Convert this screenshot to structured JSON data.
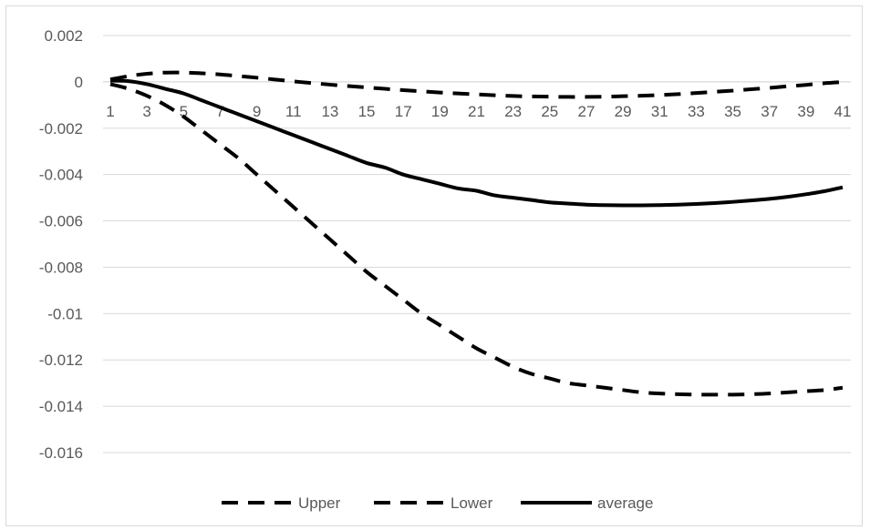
{
  "chart_data": {
    "type": "line",
    "title": "",
    "xlabel": "",
    "ylabel": "",
    "x": [
      1,
      2,
      3,
      4,
      5,
      6,
      7,
      8,
      9,
      10,
      11,
      12,
      13,
      14,
      15,
      16,
      17,
      18,
      19,
      20,
      21,
      22,
      23,
      24,
      25,
      26,
      27,
      28,
      29,
      30,
      31,
      32,
      33,
      34,
      35,
      36,
      37,
      38,
      39,
      40,
      41
    ],
    "x_tick_labels": [
      "1",
      "3",
      "5",
      "7",
      "9",
      "11",
      "13",
      "15",
      "17",
      "19",
      "21",
      "23",
      "25",
      "27",
      "29",
      "31",
      "33",
      "35",
      "37",
      "39",
      "41"
    ],
    "ylim": [
      -0.016,
      0.002
    ],
    "y_ticks": [
      0.002,
      0,
      -0.002,
      -0.004,
      -0.006,
      -0.008,
      -0.01,
      -0.012,
      -0.014,
      -0.016
    ],
    "y_tick_labels": [
      "0.002",
      "0",
      "-0.002",
      "-0.004",
      "-0.006",
      "-0.008",
      "-0.01",
      "-0.012",
      "-0.014",
      "-0.016"
    ],
    "grid": true,
    "legend_position": "bottom",
    "series": [
      {
        "name": "Upper",
        "style": "dashed",
        "color": "#000000",
        "values": [
          0.0001,
          0.00025,
          0.00035,
          0.0004,
          0.0004,
          0.00037,
          0.00032,
          0.00025,
          0.00018,
          0.0001,
          2e-05,
          -5e-05,
          -0.00012,
          -0.00018,
          -0.00024,
          -0.0003,
          -0.00036,
          -0.00041,
          -0.00046,
          -0.0005,
          -0.00054,
          -0.00058,
          -0.00061,
          -0.00063,
          -0.00064,
          -0.00065,
          -0.00065,
          -0.00064,
          -0.00062,
          -0.0006,
          -0.00057,
          -0.00053,
          -0.00048,
          -0.00043,
          -0.00038,
          -0.00032,
          -0.00026,
          -0.00019,
          -0.00013,
          -6e-05,
          -1e-05
        ]
      },
      {
        "name": "Lower",
        "style": "dashed",
        "color": "#000000",
        "values": [
          -0.0001,
          -0.0003,
          -0.0006,
          -0.001,
          -0.0015,
          -0.0021,
          -0.0027,
          -0.0033,
          -0.004,
          -0.0047,
          -0.0054,
          -0.0061,
          -0.0068,
          -0.0075,
          -0.0082,
          -0.0088,
          -0.0094,
          -0.01,
          -0.0105,
          -0.011,
          -0.0115,
          -0.0119,
          -0.0123,
          -0.0126,
          -0.0128,
          -0.013,
          -0.0131,
          -0.0132,
          -0.0133,
          -0.0134,
          -0.01345,
          -0.01348,
          -0.0135,
          -0.0135,
          -0.0135,
          -0.01348,
          -0.01345,
          -0.0134,
          -0.01335,
          -0.0133,
          -0.0132
        ]
      },
      {
        "name": "average",
        "style": "solid",
        "color": "#000000",
        "values": [
          5e-05,
          3e-05,
          -0.0001,
          -0.0003,
          -0.0005,
          -0.0008,
          -0.0011,
          -0.0014,
          -0.0017,
          -0.002,
          -0.0023,
          -0.0026,
          -0.0029,
          -0.0032,
          -0.0035,
          -0.0037,
          -0.004,
          -0.0042,
          -0.0044,
          -0.0046,
          -0.0047,
          -0.0049,
          -0.005,
          -0.0051,
          -0.0052,
          -0.00525,
          -0.0053,
          -0.00532,
          -0.00533,
          -0.00533,
          -0.00532,
          -0.0053,
          -0.00527,
          -0.00523,
          -0.00518,
          -0.00512,
          -0.00505,
          -0.00496,
          -0.00485,
          -0.00472,
          -0.00455
        ]
      }
    ]
  }
}
